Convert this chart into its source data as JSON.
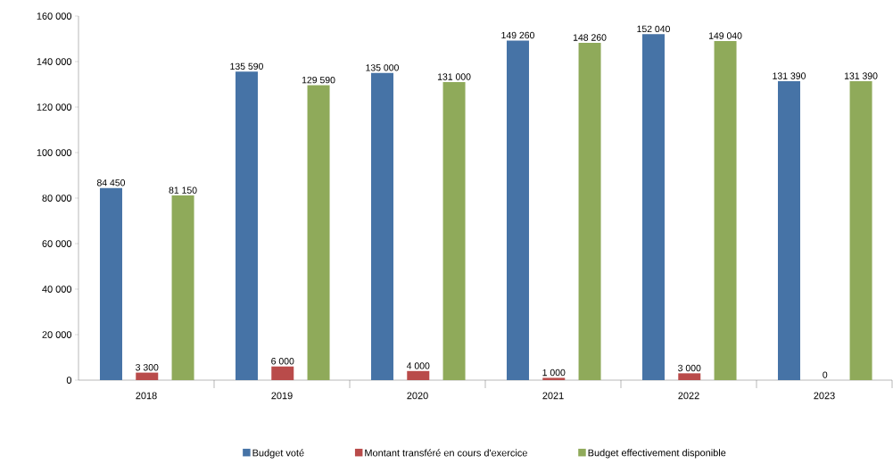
{
  "chart_data": {
    "type": "bar",
    "categories": [
      "2018",
      "2019",
      "2020",
      "2021",
      "2022",
      "2023"
    ],
    "series": [
      {
        "name": "Budget voté",
        "color": "#4673a6",
        "values": [
          84450,
          135590,
          135000,
          149260,
          152040,
          131390
        ],
        "value_labels": [
          "84 450",
          "135 590",
          "135 000",
          "149 260",
          "152 040",
          "131 390"
        ]
      },
      {
        "name": "Montant transféré en cours d'exercice",
        "color": "#b94b4a",
        "values": [
          3300,
          6000,
          4000,
          1000,
          3000,
          0
        ],
        "value_labels": [
          "3 300",
          "6 000",
          "4 000",
          "1 000",
          "3 000",
          "0"
        ]
      },
      {
        "name": "Budget effectivement disponible",
        "color": "#8faa5a",
        "values": [
          81150,
          129590,
          131000,
          148260,
          149040,
          131390
        ],
        "value_labels": [
          "81 150",
          "129 590",
          "131 000",
          "148 260",
          "149 040",
          "131 390"
        ]
      }
    ],
    "ylim": [
      0,
      160000
    ],
    "yticks": [
      {
        "value": 0,
        "label": "0"
      },
      {
        "value": 20000,
        "label": "20 000"
      },
      {
        "value": 40000,
        "label": "40 000"
      },
      {
        "value": 60000,
        "label": "60 000"
      },
      {
        "value": 80000,
        "label": "80 000"
      },
      {
        "value": 100000,
        "label": "100 000"
      },
      {
        "value": 120000,
        "label": "120 000"
      },
      {
        "value": 140000,
        "label": "140 000"
      },
      {
        "value": 160000,
        "label": "160 000"
      }
    ],
    "legend": "bottom"
  }
}
